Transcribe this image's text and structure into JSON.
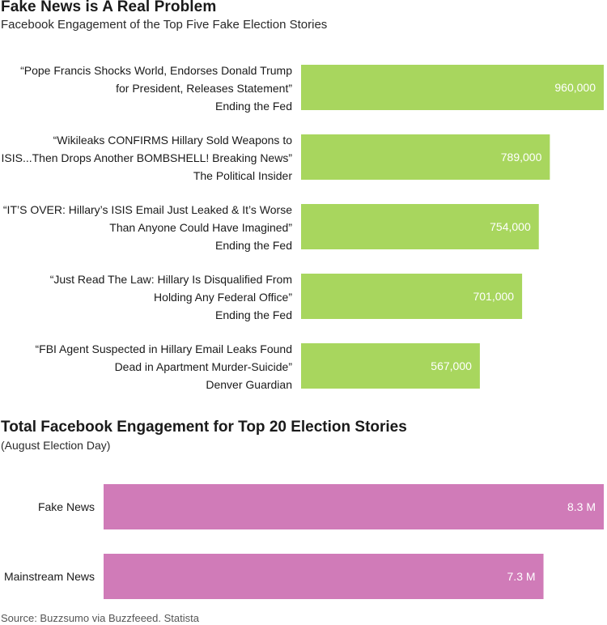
{
  "colors": {
    "green_bar": "#a8d65e",
    "pink_bar": "#d07bb8",
    "bar_text": "#ffffff"
  },
  "header": {
    "title": "Fake News is A Real Problem",
    "subtitle": "Facebook Engagement of the Top Five Fake Election Stories"
  },
  "chart_data": [
    {
      "type": "bar",
      "orientation": "horizontal",
      "title": "Fake News is A Real Problem",
      "subtitle": "Facebook Engagement of the Top Five Fake Election Stories",
      "xlim": [
        0,
        960000
      ],
      "categories": [
        {
          "lines": [
            "“Pope Francis Shocks World, Endorses Donald Trump",
            "for President, Releases Statement”"
          ],
          "source": "Ending the Fed"
        },
        {
          "lines": [
            "“Wikileaks CONFIRMS Hillary Sold Weapons to",
            "ISIS...Then Drops Another BOMBSHELL! Breaking News”"
          ],
          "source": "The Political Insider"
        },
        {
          "lines": [
            "“IT’S OVER: Hillary’s ISIS Email Just Leaked & It’s Worse",
            "Than Anyone Could Have Imagined”"
          ],
          "source": "Ending the Fed"
        },
        {
          "lines": [
            "“Just Read The Law: Hillary Is Disqualified From",
            "Holding Any Federal Office”"
          ],
          "source": "Ending the Fed"
        },
        {
          "lines": [
            "“FBI Agent Suspected in Hillary Email Leaks Found",
            "Dead in Apartment Murder-Suicide”"
          ],
          "source": "Denver Guardian"
        }
      ],
      "values": [
        960000,
        789000,
        754000,
        701000,
        567000
      ],
      "value_labels": [
        "960,000",
        "789,000",
        "754,000",
        "701,000",
        "567,000"
      ]
    },
    {
      "type": "bar",
      "orientation": "horizontal",
      "title": "Total Facebook Engagement for Top 20 Election Stories",
      "subtitle": "(August Election Day)",
      "xlim": [
        0,
        8.3
      ],
      "categories": [
        "Fake News",
        "Mainstream News"
      ],
      "values": [
        8.3,
        7.3
      ],
      "value_labels": [
        "8.3 M",
        "7.3 M"
      ]
    }
  ],
  "footer": {
    "source": "Source: Buzzsumo via Buzzfeeed. Statista"
  }
}
